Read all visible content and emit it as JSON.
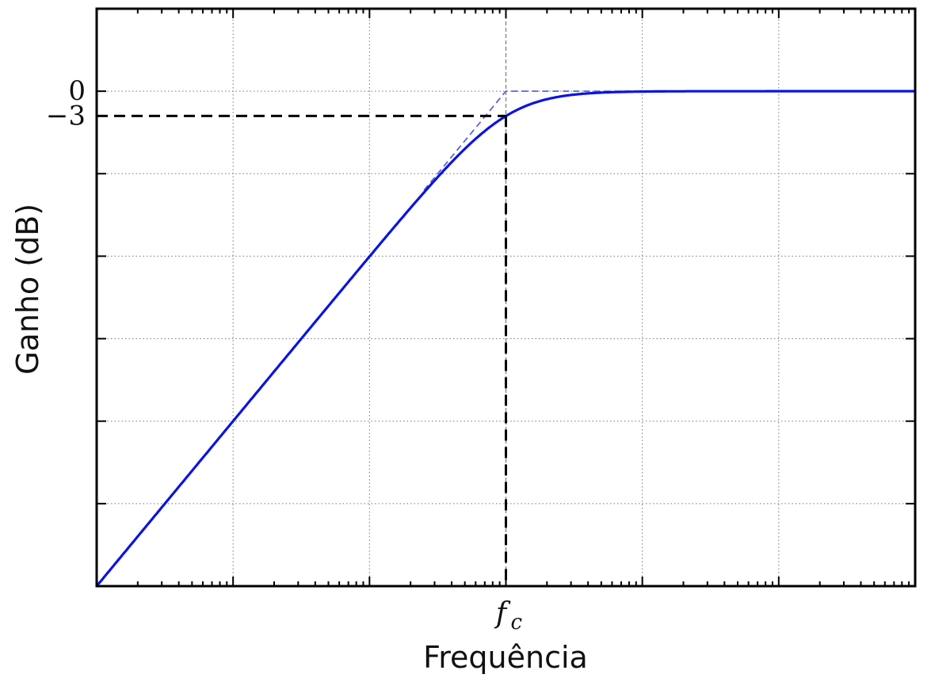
{
  "chart_data": {
    "type": "line",
    "title": "",
    "xlabel": "Frequência",
    "ylabel": "Ganho (dB)",
    "x_scale": "log",
    "x_decades": 6,
    "x_tick_labels": [
      {
        "text": "f",
        "subscript": "c",
        "decade": 3
      }
    ],
    "y_tick_labels": [
      {
        "text": "0",
        "value": 0
      },
      {
        "text": "−3",
        "value": -3
      }
    ],
    "ylim": [
      -60,
      10
    ],
    "y_gridlines": [
      0,
      -10,
      -20,
      -30,
      -40,
      -50
    ],
    "grid": true,
    "series": [
      {
        "kind": "high-pass response",
        "color": "#0a14e0",
        "x_decades": [
          -3,
          -2.5,
          -2,
          -1.5,
          -1,
          -0.75,
          -0.5,
          -0.25,
          0,
          0.25,
          0.5,
          0.75,
          1,
          1.5,
          2,
          3
        ],
        "y_db": [
          -60,
          -50,
          -40,
          -30,
          -20.04,
          -15.07,
          -10.41,
          -6.38,
          -3.01,
          -1.08,
          -0.41,
          -0.14,
          -0.04,
          -0.004,
          0,
          0
        ]
      },
      {
        "kind": "asymptote",
        "color": "#5566dd",
        "style": "dashed",
        "x_decades": [
          -0.6,
          0,
          1
        ],
        "y_db": [
          -12,
          0,
          0
        ]
      }
    ],
    "annotations": [
      {
        "kind": "marker-line",
        "value_db": -3,
        "at_decade": 0
      }
    ]
  }
}
